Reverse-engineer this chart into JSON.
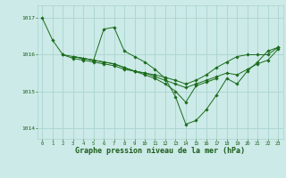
{
  "background_color": "#cceae7",
  "grid_color": "#aad4d0",
  "line_color": "#1a6b1a",
  "marker_color": "#1a6b1a",
  "xlabel": "Graphe pression niveau de la mer (hPa)",
  "xlabel_fontsize": 6.0,
  "tick_label_color": "#1a5c1a",
  "ylim": [
    1013.7,
    1017.35
  ],
  "xlim": [
    -0.5,
    23.5
  ],
  "yticks": [
    1014,
    1015,
    1016,
    1017
  ],
  "xticks": [
    0,
    1,
    2,
    3,
    4,
    5,
    6,
    7,
    8,
    9,
    10,
    11,
    12,
    13,
    14,
    15,
    16,
    17,
    18,
    19,
    20,
    21,
    22,
    23
  ],
  "series": [
    [
      1017.0,
      1016.4,
      1016.0,
      1015.95,
      1015.9,
      1015.85,
      1016.7,
      1016.75,
      1016.1,
      1015.95,
      1015.8,
      1015.6,
      1015.35,
      1014.85,
      1014.1,
      1014.2,
      1014.5,
      1014.9,
      1015.35,
      1015.2,
      1015.55,
      1015.8,
      1016.1,
      1016.2
    ],
    [
      null,
      null,
      1016.0,
      1015.9,
      1015.85,
      1015.8,
      1015.75,
      1015.7,
      1015.6,
      1015.55,
      1015.45,
      1015.35,
      1015.2,
      1015.0,
      1014.7,
      1015.15,
      1015.25,
      1015.35,
      null,
      null,
      null,
      null,
      null,
      null
    ],
    [
      null,
      null,
      null,
      1015.95,
      1015.9,
      1015.85,
      1015.8,
      1015.75,
      1015.65,
      1015.55,
      1015.5,
      1015.4,
      1015.3,
      1015.2,
      1015.1,
      1015.2,
      1015.3,
      1015.4,
      1015.5,
      1015.45,
      1015.6,
      1015.75,
      1015.85,
      1016.15
    ],
    [
      null,
      null,
      null,
      1015.95,
      1015.9,
      1015.85,
      1015.8,
      1015.75,
      1015.65,
      1015.55,
      1015.5,
      1015.45,
      1015.38,
      1015.3,
      1015.2,
      1015.3,
      1015.45,
      1015.65,
      1015.8,
      1015.95,
      1016.0,
      1016.0,
      1016.0,
      1016.2
    ]
  ]
}
